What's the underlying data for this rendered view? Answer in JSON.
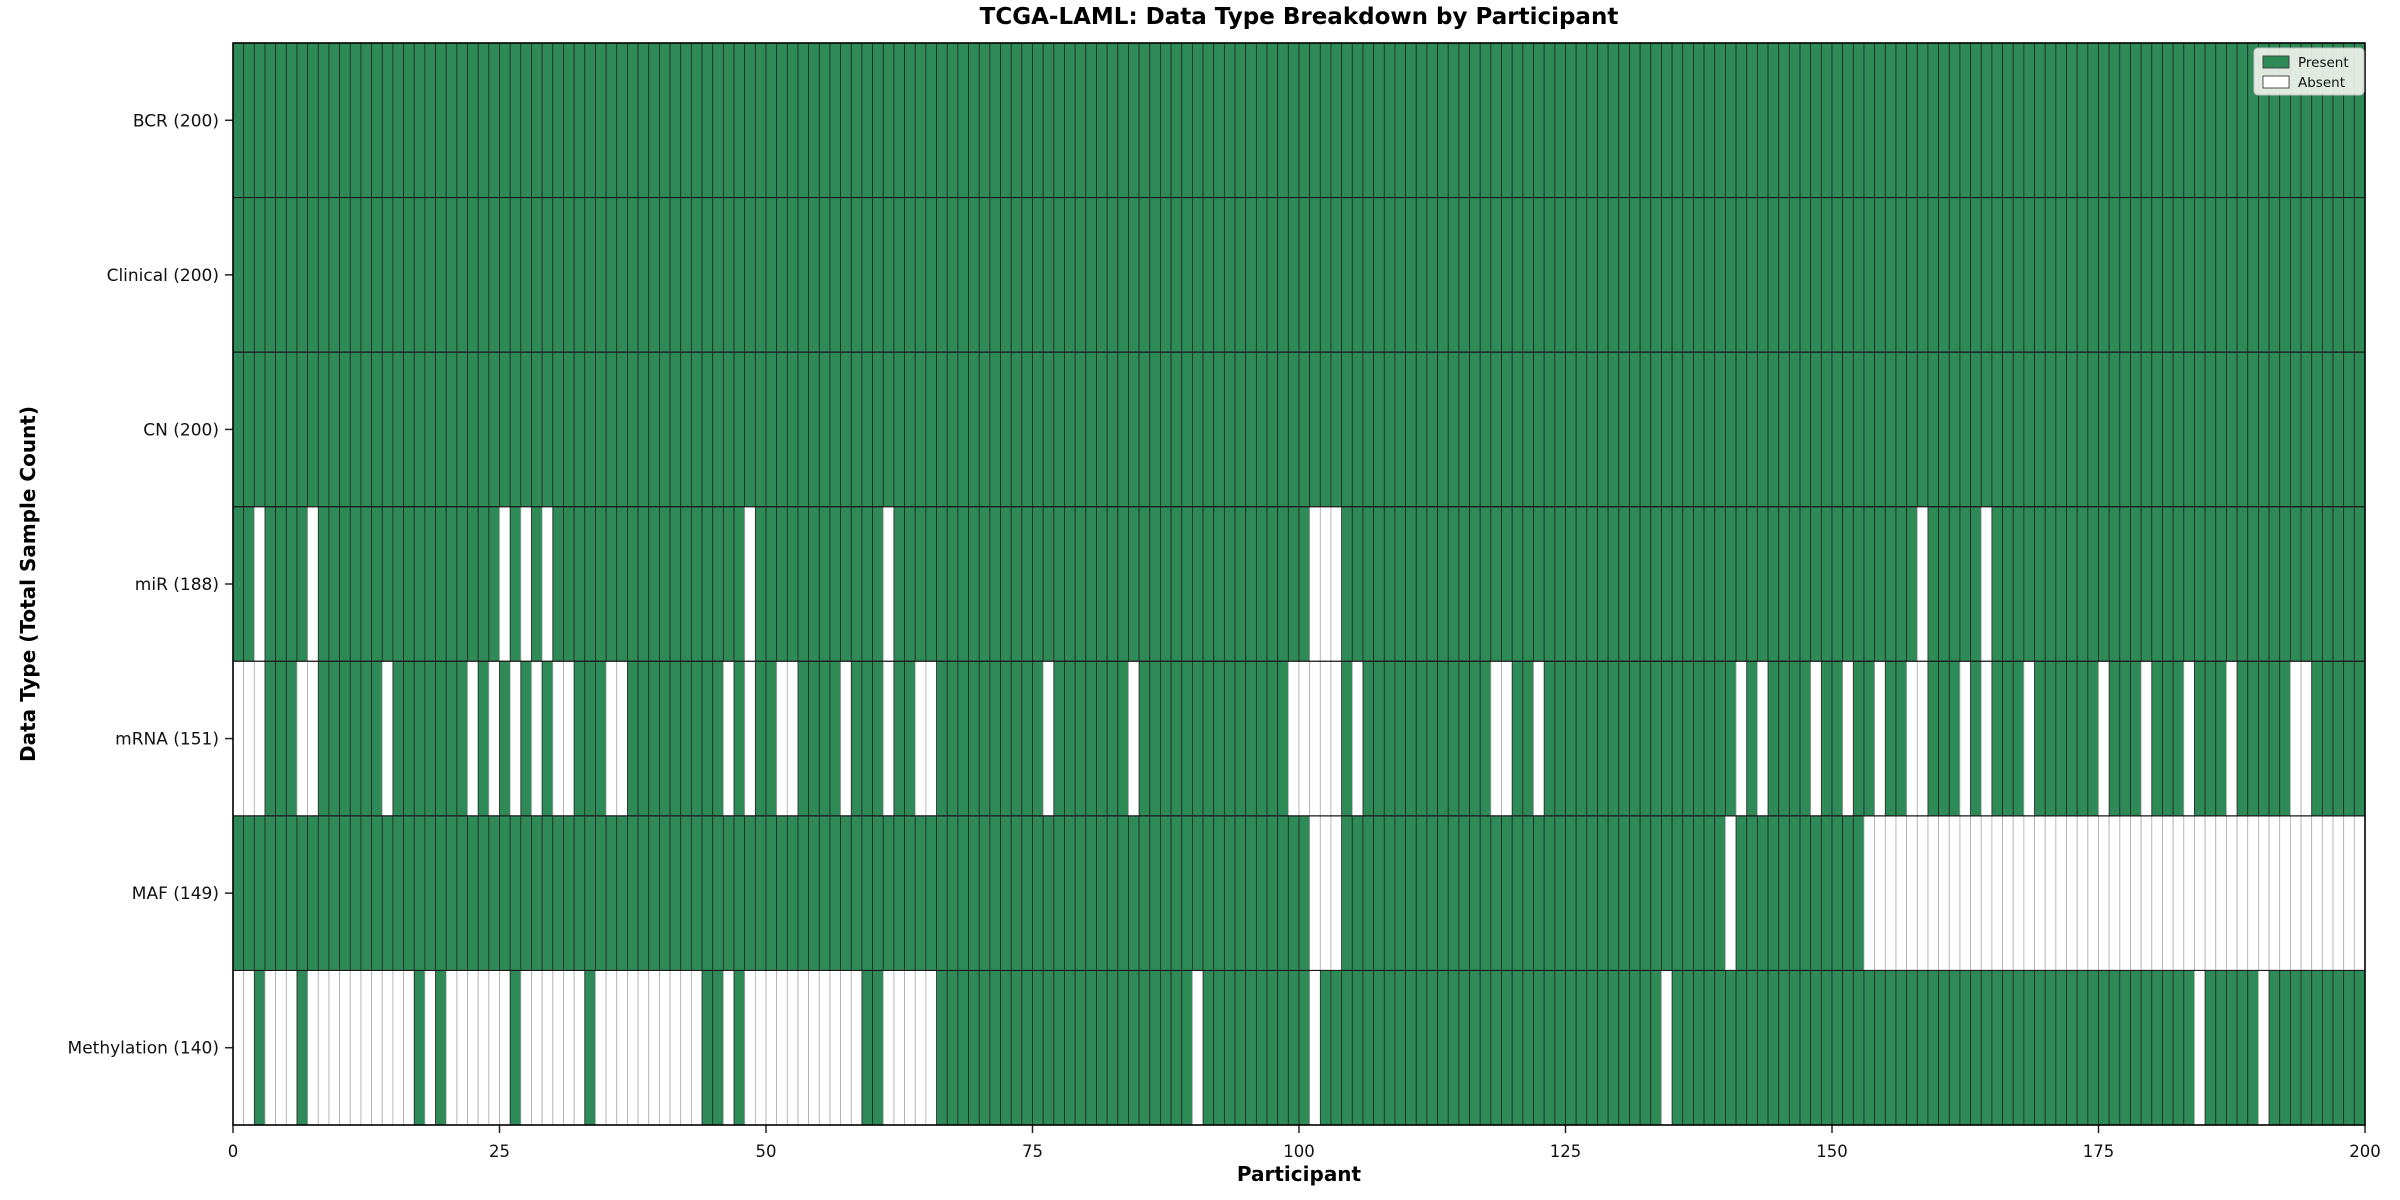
{
  "figure": {
    "title": "TCGA-LAML: Data Type Breakdown by Participant",
    "xlabel": "Participant",
    "ylabel": "Data Type (Total Sample Count)"
  },
  "colors": {
    "present": "#2e8b57",
    "absent": "#ffffff",
    "present_edge": "#262626",
    "absent_edge": "#ababab",
    "row_divider": "#1a1a1a",
    "frame": "#000000",
    "tick": "#222222",
    "text": "#111111",
    "legend_bg": "#f4f4f1",
    "legend_border": "#c0c0c0"
  },
  "chart_data": {
    "type": "heatmap",
    "title": "TCGA-LAML: Data Type Breakdown by Participant",
    "xlabel": "Participant",
    "ylabel": "Data Type (Total Sample Count)",
    "n_participants": 200,
    "x_ticks": [
      0,
      25,
      50,
      75,
      100,
      125,
      150,
      175,
      200
    ],
    "grid": false,
    "legend_position": "upper right",
    "legend": [
      {
        "label": "Present",
        "color": "#2e8b57"
      },
      {
        "label": "Absent",
        "color": "#ffffff"
      }
    ],
    "rows": [
      {
        "label": "BCR (200)",
        "total": 200,
        "absent": []
      },
      {
        "label": "Clinical (200)",
        "total": 200,
        "absent": []
      },
      {
        "label": "CN (200)",
        "total": 200,
        "absent": []
      },
      {
        "label": "miR (188)",
        "total": 188,
        "absent": [
          2,
          7,
          25,
          27,
          29,
          48,
          61,
          101,
          102,
          103,
          158,
          164
        ]
      },
      {
        "label": "mRNA (151)",
        "total": 151,
        "absent": [
          0,
          1,
          2,
          6,
          7,
          14,
          22,
          24,
          26,
          28,
          30,
          31,
          35,
          36,
          46,
          48,
          51,
          52,
          57,
          61,
          64,
          65,
          76,
          84,
          99,
          100,
          101,
          102,
          103,
          105,
          118,
          119,
          122,
          141,
          143,
          148,
          151,
          154,
          157,
          158,
          162,
          164,
          168,
          175,
          179,
          183,
          187,
          193,
          194
        ]
      },
      {
        "label": "MAF (149)",
        "total": 149,
        "absent": [
          101,
          102,
          103,
          140,
          153,
          154,
          155,
          156,
          157,
          158,
          159,
          160,
          161,
          162,
          163,
          164,
          165,
          166,
          167,
          168,
          169,
          170,
          171,
          172,
          173,
          174,
          175,
          176,
          177,
          178,
          179,
          180,
          181,
          182,
          183,
          184,
          185,
          186,
          187,
          188,
          189,
          190,
          191,
          192,
          193,
          194,
          195,
          196,
          197,
          198,
          199
        ]
      },
      {
        "label": "Methylation (140)",
        "total": 140,
        "absent": [
          0,
          1,
          3,
          4,
          5,
          7,
          8,
          9,
          10,
          11,
          12,
          13,
          14,
          15,
          16,
          18,
          20,
          21,
          22,
          23,
          24,
          25,
          27,
          28,
          29,
          30,
          31,
          32,
          34,
          35,
          36,
          37,
          38,
          39,
          40,
          41,
          42,
          43,
          46,
          48,
          49,
          50,
          51,
          52,
          53,
          54,
          55,
          56,
          57,
          58,
          61,
          62,
          63,
          64,
          65,
          90,
          101,
          134,
          184,
          190
        ]
      }
    ]
  }
}
